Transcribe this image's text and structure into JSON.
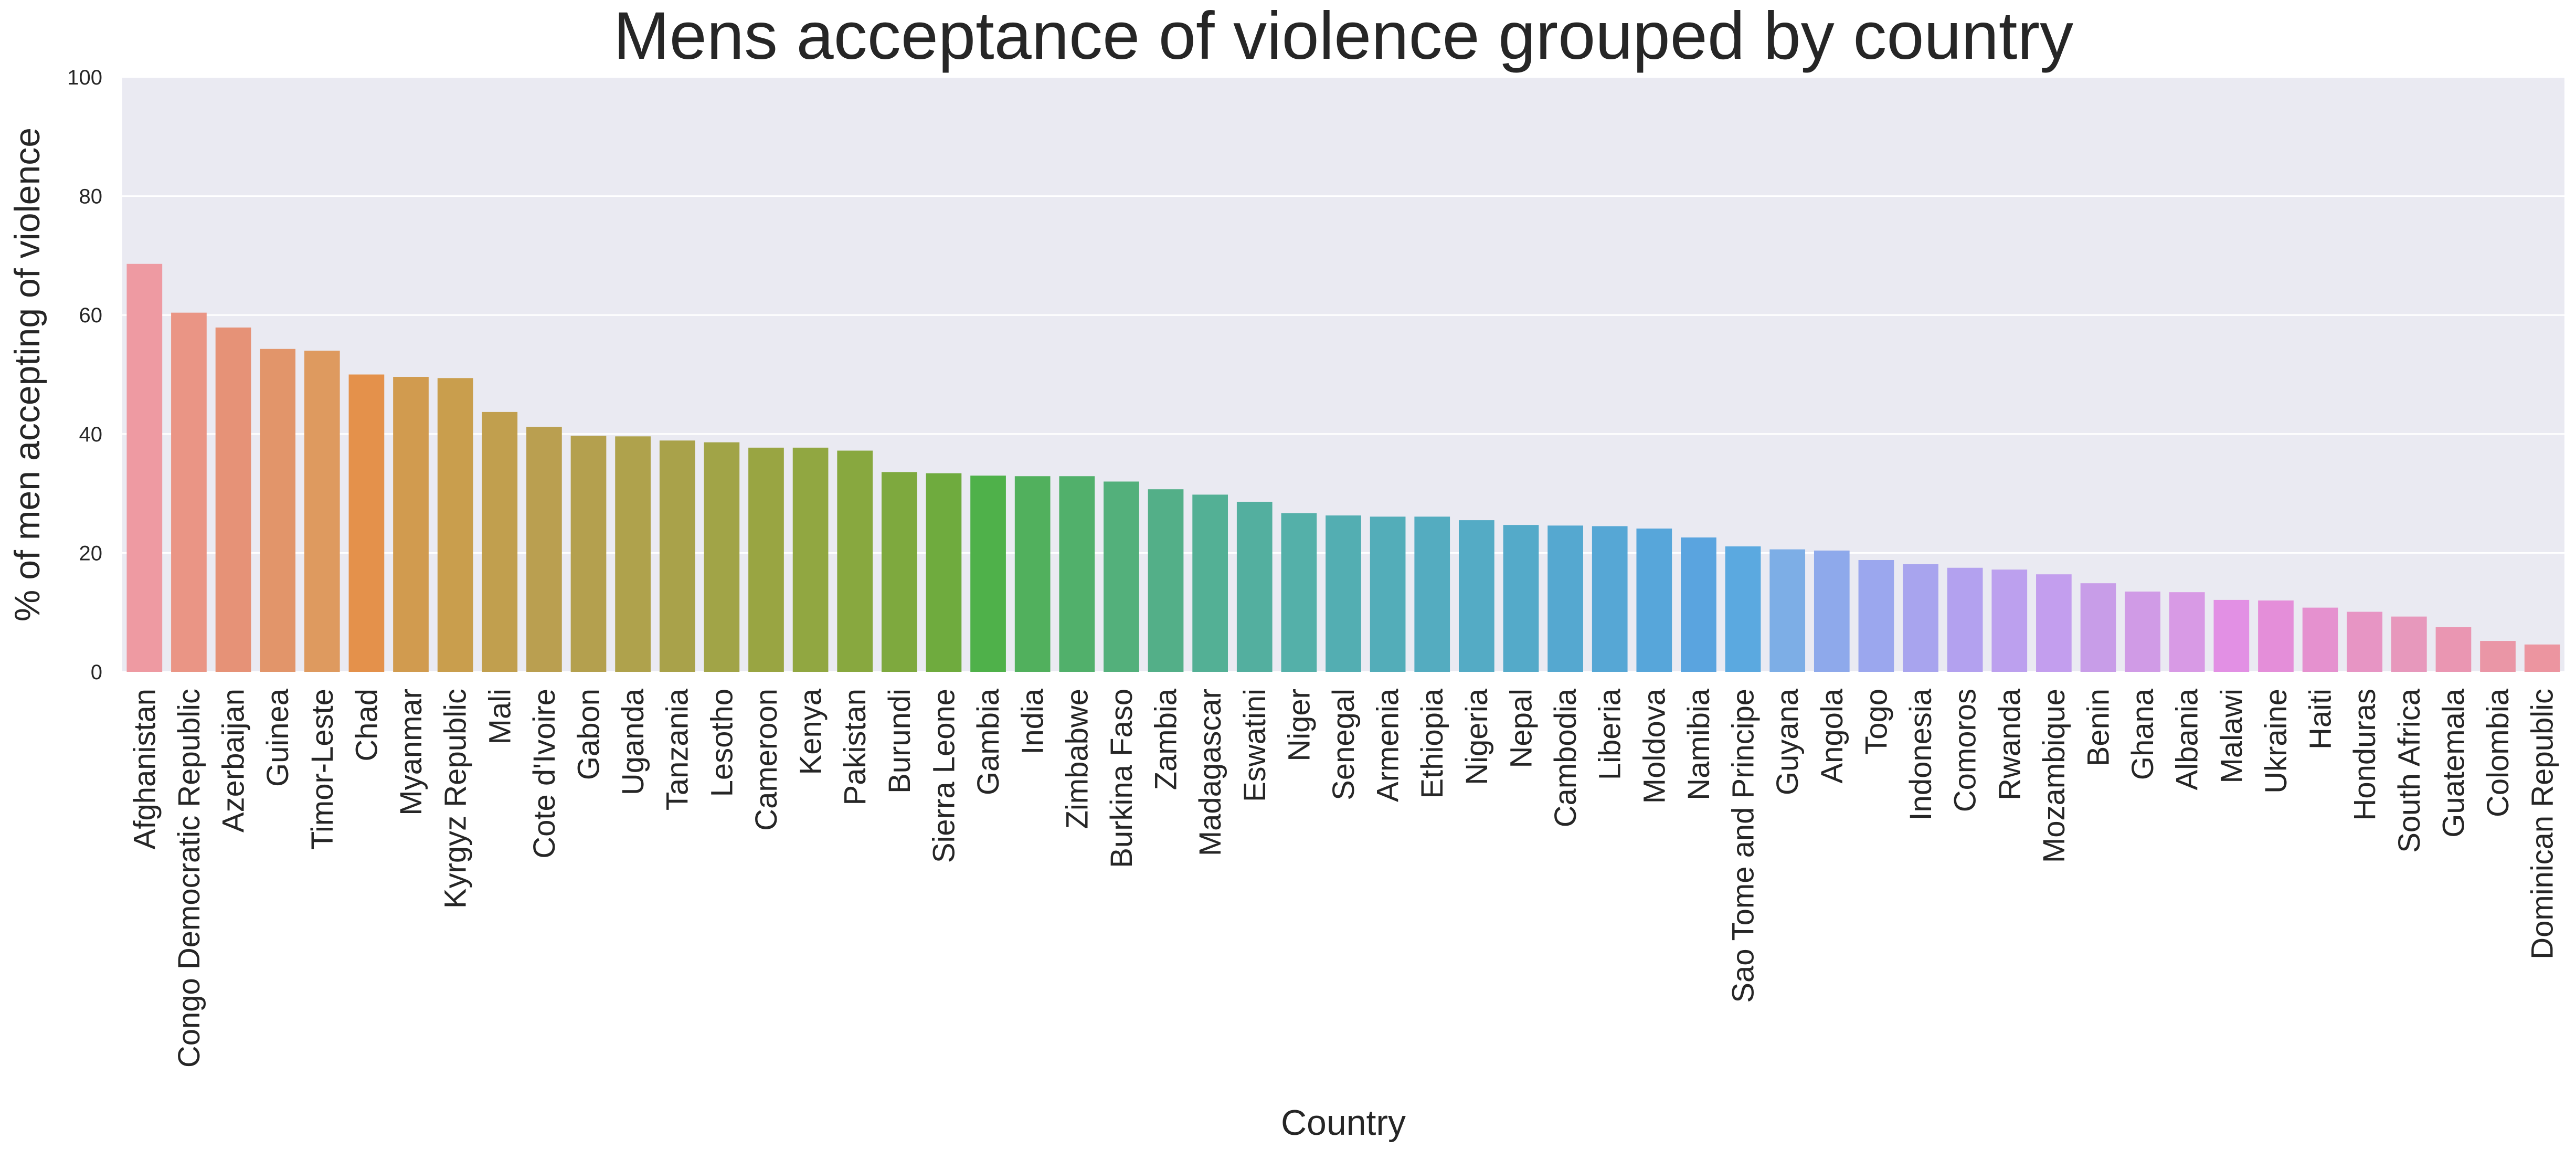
{
  "chart_data": {
    "type": "bar",
    "title": "Mens acceptance of violence grouped by country",
    "xlabel": "Country",
    "ylabel": "% of men accepting of violence",
    "ylim": [
      0,
      100
    ],
    "yticks": [
      0,
      20,
      40,
      60,
      80,
      100
    ],
    "grid": true,
    "legend": "none",
    "categories": [
      "Afghanistan",
      "Congo Democratic Republic",
      "Azerbaijan",
      "Guinea",
      "Timor-Leste",
      "Chad",
      "Myanmar",
      "Kyrgyz Republic",
      "Mali",
      "Cote d'Ivoire",
      "Gabon",
      "Uganda",
      "Tanzania",
      "Lesotho",
      "Cameroon",
      "Kenya",
      "Pakistan",
      "Burundi",
      "Sierra Leone",
      "Gambia",
      "India",
      "Zimbabwe",
      "Burkina Faso",
      "Zambia",
      "Madagascar",
      "Eswatini",
      "Niger",
      "Senegal",
      "Armenia",
      "Ethiopia",
      "Nigeria",
      "Nepal",
      "Cambodia",
      "Liberia",
      "Moldova",
      "Namibia",
      "Sao Tome and Principe",
      "Guyana",
      "Angola",
      "Togo",
      "Indonesia",
      "Comoros",
      "Rwanda",
      "Mozambique",
      "Benin",
      "Ghana",
      "Albania",
      "Malawi",
      "Ukraine",
      "Haiti",
      "Honduras",
      "South Africa",
      "Guatemala",
      "Colombia",
      "Dominican Republic"
    ],
    "values": [
      68.6,
      60.4,
      57.9,
      54.3,
      54.0,
      50.0,
      49.6,
      49.4,
      43.7,
      41.2,
      39.7,
      39.6,
      38.9,
      38.6,
      37.7,
      37.7,
      37.2,
      33.6,
      33.4,
      33.0,
      32.9,
      32.9,
      32.0,
      30.7,
      29.8,
      28.6,
      26.7,
      26.3,
      26.1,
      26.1,
      25.5,
      24.7,
      24.6,
      24.5,
      24.1,
      22.6,
      21.1,
      20.6,
      20.4,
      18.8,
      18.1,
      17.5,
      17.2,
      16.4,
      14.9,
      13.5,
      13.4,
      12.1,
      12.0,
      10.8,
      10.1,
      9.3,
      7.5,
      5.2,
      4.6
    ],
    "colors": [
      "#ee9aa2",
      "#ea9585",
      "#e69277",
      "#e2956a",
      "#de9a5f",
      "#e4914b",
      "#d19b4f",
      "#c99e4d",
      "#c19f4e",
      "#ba9f50",
      "#b4a04e",
      "#afa24c",
      "#a9a24a",
      "#a1a447",
      "#99a542",
      "#91a741",
      "#88a83f",
      "#7ea93e",
      "#6fab3e",
      "#4fb14a",
      "#51b05d",
      "#51b06b",
      "#53b07b",
      "#53af88",
      "#53b095",
      "#53af9f",
      "#54b0a9",
      "#53aeb2",
      "#53adb9",
      "#54acc0",
      "#54abc5",
      "#54aac9",
      "#55a8d0",
      "#56a7d5",
      "#57a6da",
      "#5aa4df",
      "#5ba9e0",
      "#7daee6",
      "#8ea9eb",
      "#9ba7ee",
      "#a8a4ee",
      "#b3a1ef",
      "#bca0ee",
      "#c39eee",
      "#c89de8",
      "#d09be6",
      "#d89ae5",
      "#e290e4",
      "#e48ed9",
      "#e591cf",
      "#e795c4",
      "#e798bc",
      "#ea96b2",
      "#ea96a6",
      "#ec95a0"
    ]
  }
}
